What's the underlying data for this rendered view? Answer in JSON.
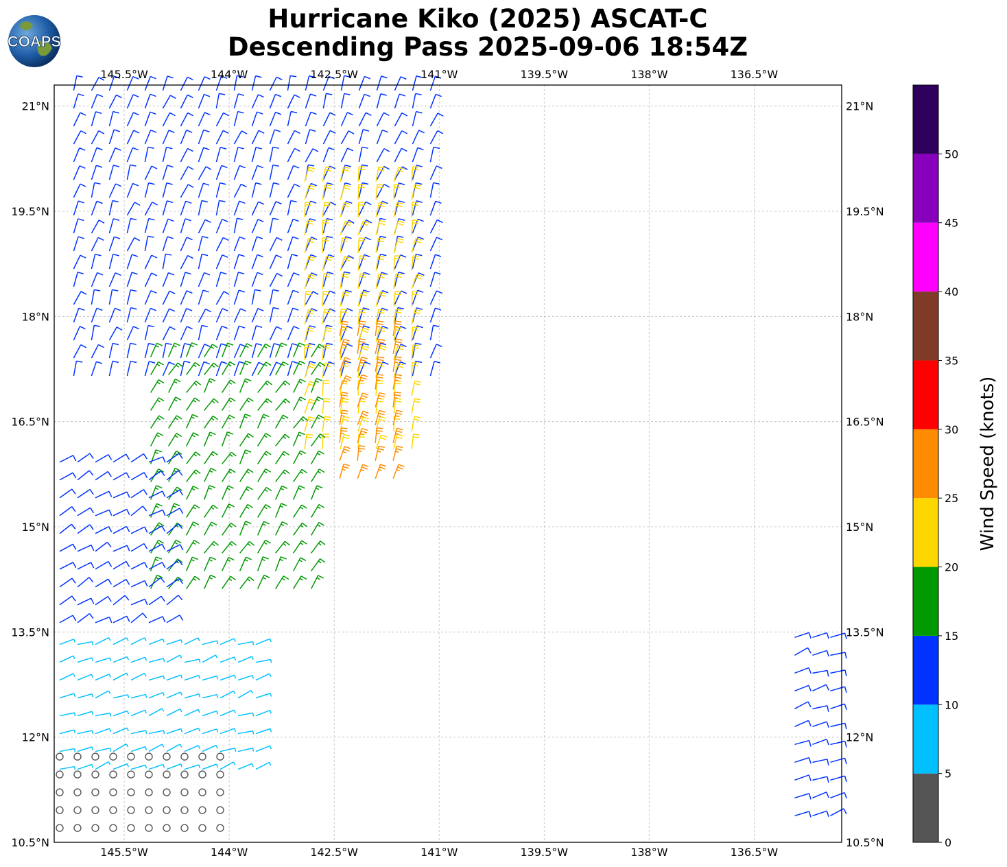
{
  "title": {
    "line1": "Hurricane Kiko (2025) ASCAT-C",
    "line2": "Descending Pass 2025-09-06 18:54Z"
  },
  "logo": {
    "text": "COAPS",
    "icon": "globe-logo-icon"
  },
  "map": {
    "lon_range": [
      -146.5,
      -135.25
    ],
    "lat_range": [
      10.5,
      21.3
    ],
    "gridlines": true,
    "x_ticks": [
      "145.5°W",
      "144°W",
      "142.5°W",
      "141°W",
      "139.5°W",
      "138°W",
      "136.5°W"
    ],
    "y_ticks": [
      "21°N",
      "19.5°N",
      "18°N",
      "16.5°N",
      "15°N",
      "13.5°N",
      "12°N",
      "10.5°N"
    ]
  },
  "colorbar": {
    "label": "Wind Speed (knots)",
    "ticks": [
      "0",
      "5",
      "10",
      "15",
      "20",
      "25",
      "30",
      "35",
      "40",
      "45",
      "50"
    ],
    "bins": [
      {
        "from": 0,
        "to": 5,
        "color": "#555555"
      },
      {
        "from": 5,
        "to": 10,
        "color": "#00bfff"
      },
      {
        "from": 10,
        "to": 15,
        "color": "#0033ff"
      },
      {
        "from": 15,
        "to": 20,
        "color": "#009900"
      },
      {
        "from": 20,
        "to": 25,
        "color": "#ffd700"
      },
      {
        "from": 25,
        "to": 30,
        "color": "#ff8c00"
      },
      {
        "from": 30,
        "to": 35,
        "color": "#ff0000"
      },
      {
        "from": 35,
        "to": 40,
        "color": "#7f3b28"
      },
      {
        "from": 40,
        "to": 45,
        "color": "#ff00ff"
      },
      {
        "from": 45,
        "to": 50,
        "color": "#8800bb"
      },
      {
        "from": 50,
        "to": 55,
        "color": "#2e005e"
      }
    ]
  },
  "wind_field": {
    "description_free": true,
    "regions": [
      {
        "lat": [
          17.0,
          21.3
        ],
        "lon": [
          -146.3,
          -141.0
        ],
        "speed": 12,
        "dir": 70
      },
      {
        "lat": [
          16.0,
          20.0
        ],
        "lon": [
          -143.0,
          -141.2
        ],
        "speed": 22,
        "dir": 80
      },
      {
        "lat": [
          15.5,
          17.8
        ],
        "lon": [
          -142.5,
          -141.5
        ],
        "speed": 27,
        "dir": 75
      },
      {
        "lat": [
          14.0,
          17.5
        ],
        "lon": [
          -145.2,
          -142.8
        ],
        "speed": 17,
        "dir": 60
      },
      {
        "lat": [
          13.4,
          16.0
        ],
        "lon": [
          -146.5,
          -144.8
        ],
        "speed": 12,
        "dir": 30
      },
      {
        "lat": [
          11.5,
          13.4
        ],
        "lon": [
          -146.5,
          -143.5
        ],
        "speed": 7,
        "dir": 20
      },
      {
        "lat": [
          10.5,
          11.8
        ],
        "lon": [
          -146.5,
          -144.0
        ],
        "speed": 2,
        "dir": 0
      },
      {
        "lat": [
          10.8,
          13.5
        ],
        "lon": [
          -136.0,
          -135.25
        ],
        "speed": 12,
        "dir": 20
      }
    ]
  }
}
